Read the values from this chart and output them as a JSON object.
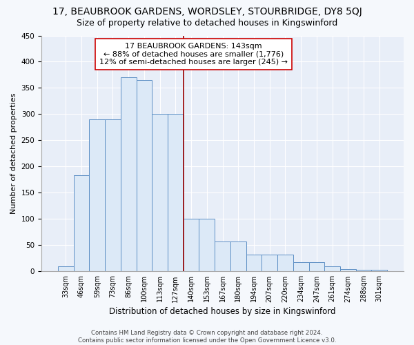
{
  "title": "17, BEAUBROOK GARDENS, WORDSLEY, STOURBRIDGE, DY8 5QJ",
  "subtitle": "Size of property relative to detached houses in Kingswinford",
  "xlabel": "Distribution of detached houses by size in Kingswinford",
  "ylabel": "Number of detached properties",
  "categories": [
    "33sqm",
    "46sqm",
    "59sqm",
    "73sqm",
    "86sqm",
    "100sqm",
    "113sqm",
    "127sqm",
    "140sqm",
    "153sqm",
    "167sqm",
    "180sqm",
    "194sqm",
    "207sqm",
    "220sqm",
    "234sqm",
    "247sqm",
    "261sqm",
    "274sqm",
    "288sqm",
    "301sqm"
  ],
  "values": [
    10,
    183,
    290,
    290,
    370,
    365,
    300,
    300,
    100,
    100,
    57,
    57,
    32,
    32,
    32,
    17,
    17,
    10,
    5,
    3,
    3
  ],
  "bar_color": "#dce9f7",
  "bar_edge_color": "#5b8ec4",
  "vline_x_index": 8,
  "vline_color": "#990000",
  "annotation_title": "17 BEAUBROOK GARDENS: 143sqm",
  "annotation_line1": "← 88% of detached houses are smaller (1,776)",
  "annotation_line2": "12% of semi-detached houses are larger (245) →",
  "footnote": "Contains HM Land Registry data © Crown copyright and database right 2024.\nContains public sector information licensed under the Open Government Licence v3.0.",
  "ylim": [
    0,
    450
  ],
  "yticks": [
    0,
    50,
    100,
    150,
    200,
    250,
    300,
    350,
    400,
    450
  ],
  "fig_bg_color": "#f5f8fc",
  "plot_bg_color": "#e8eef8",
  "title_fontsize": 10,
  "subtitle_fontsize": 9,
  "annotation_fontsize": 8,
  "ylabel_fontsize": 8,
  "xlabel_fontsize": 8.5
}
